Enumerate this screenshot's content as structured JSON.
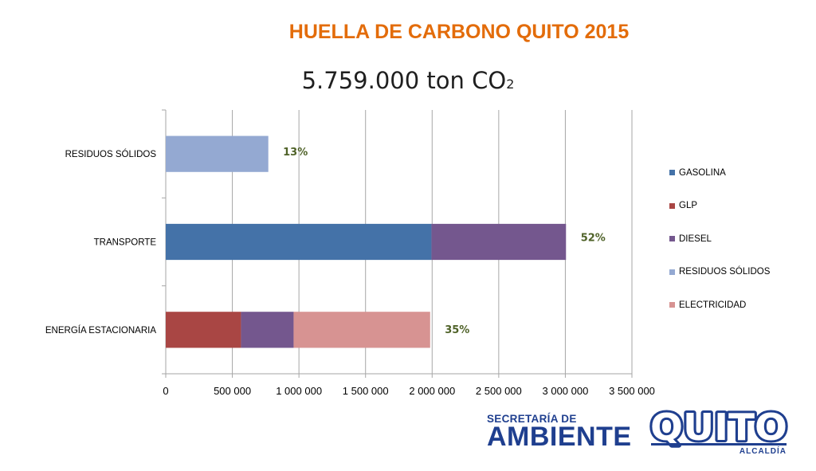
{
  "header": {
    "title": "HUELLA DE CARBONO QUITO 2015",
    "subtitle_main": "5.759.000 ton CO",
    "subtitle_sub": "2"
  },
  "colors": {
    "title": "#e36c0a",
    "label_green": "#4f6228",
    "gridline": "#a6a6a6",
    "brand_blue": "#1f3f8f"
  },
  "chart_data": {
    "type": "bar",
    "orientation": "horizontal",
    "stacked": true,
    "categories": [
      "ENERGÍA ESTACIONARIA",
      "TRANSPORTE",
      "RESIDUOS SÓLIDOS"
    ],
    "series": [
      {
        "name": "GASOLINA",
        "color": "#4472a8",
        "values": [
          0,
          1995000,
          0
        ]
      },
      {
        "name": "GLP",
        "color": "#a94644",
        "values": [
          565000,
          0,
          0
        ]
      },
      {
        "name": "DIESEL",
        "color": "#74578e",
        "values": [
          395000,
          1010000,
          0
        ]
      },
      {
        "name": "RESIDUOS SÓLIDOS",
        "color": "#94a9d2",
        "values": [
          0,
          0,
          770000
        ]
      },
      {
        "name": "ELECTRICIDAD",
        "color": "#d79392",
        "values": [
          1025000,
          0,
          0
        ]
      }
    ],
    "bar_labels": [
      {
        "category": "ENERGÍA ESTACIONARIA",
        "text": "35%"
      },
      {
        "category": "TRANSPORTE",
        "text": "52%"
      },
      {
        "category": "RESIDUOS SÓLIDOS",
        "text": "13%"
      }
    ],
    "xlim": [
      0,
      3500000
    ],
    "xticks": [
      0,
      500000,
      1000000,
      1500000,
      2000000,
      2500000,
      3000000,
      3500000
    ],
    "xtick_labels": [
      "0",
      "500 000",
      "1 000 000",
      "1 500 000",
      "2 000 000",
      "2 500 000",
      "3 000 000",
      "3 500 000"
    ],
    "grid": true,
    "legend_position": "right"
  },
  "logos": {
    "ambiente_top": "SECRETARÍA DE",
    "ambiente_bottom": "AMBIENTE",
    "quito_name": "QUITO",
    "quito_sub": "ALCALDÍA"
  }
}
